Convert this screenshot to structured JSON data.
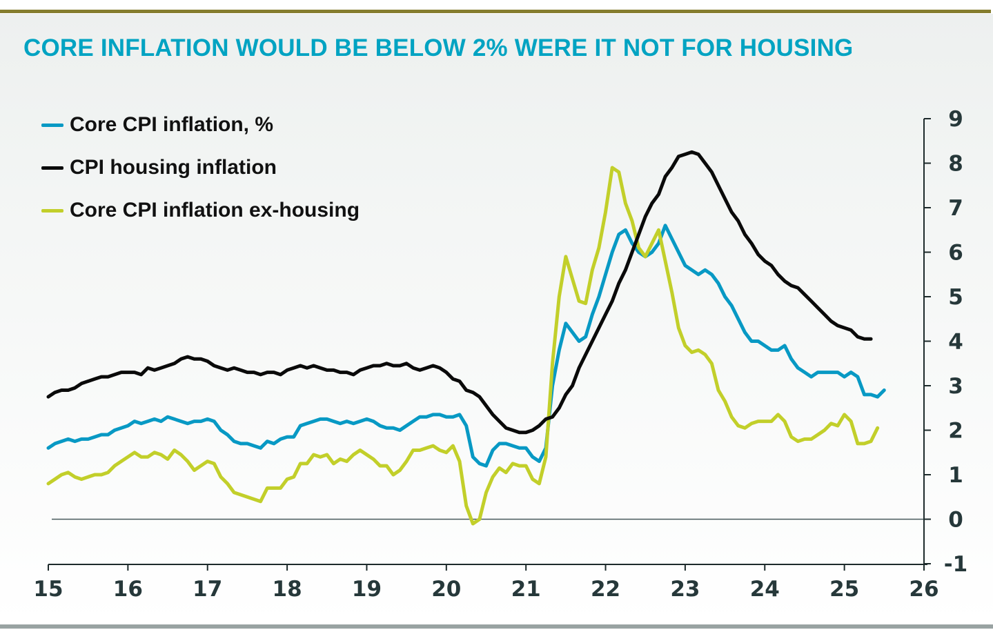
{
  "title": "CORE INFLATION WOULD BE BELOW 2% WERE IT NOT FOR HOUSING",
  "colors": {
    "top_rule": "#857d2e",
    "bottom_rule": "#99a3a2",
    "title": "#00a3c2",
    "axis_text": "#26383a"
  },
  "chart_data": {
    "type": "line",
    "title": "CORE INFLATION WOULD BE BELOW 2% WERE IT NOT FOR HOUSING",
    "xlabel": "",
    "ylabel": "",
    "xlim": [
      15,
      26
    ],
    "ylim": [
      -1,
      9
    ],
    "x_ticks": [
      "15",
      "16",
      "17",
      "18",
      "19",
      "20",
      "21",
      "22",
      "23",
      "24",
      "25",
      "26"
    ],
    "y_ticks": [
      "9",
      "8",
      "7",
      "6",
      "5",
      "4",
      "3",
      "2",
      "1",
      "0",
      "-1"
    ],
    "y_axis_side": "right",
    "zero_line": true,
    "grid": false,
    "legend_position": "top-left",
    "x_start": 2015.0,
    "x_step_months": 1,
    "series": [
      {
        "name": "Core CPI inflation, %",
        "color": "#0899c4",
        "values": [
          1.6,
          1.7,
          1.75,
          1.8,
          1.75,
          1.8,
          1.8,
          1.85,
          1.9,
          1.9,
          2.0,
          2.05,
          2.1,
          2.2,
          2.15,
          2.2,
          2.25,
          2.2,
          2.3,
          2.25,
          2.2,
          2.15,
          2.2,
          2.2,
          2.25,
          2.2,
          2.0,
          1.9,
          1.75,
          1.7,
          1.7,
          1.65,
          1.6,
          1.75,
          1.7,
          1.8,
          1.85,
          1.85,
          2.1,
          2.15,
          2.2,
          2.25,
          2.25,
          2.2,
          2.15,
          2.2,
          2.15,
          2.2,
          2.25,
          2.2,
          2.1,
          2.05,
          2.05,
          2.0,
          2.1,
          2.2,
          2.3,
          2.3,
          2.35,
          2.35,
          2.3,
          2.3,
          2.35,
          2.1,
          1.4,
          1.25,
          1.2,
          1.55,
          1.7,
          1.7,
          1.65,
          1.6,
          1.6,
          1.4,
          1.3,
          1.6,
          3.0,
          3.8,
          4.4,
          4.2,
          4.0,
          4.1,
          4.6,
          5.0,
          5.5,
          6.0,
          6.4,
          6.5,
          6.2,
          6.0,
          5.9,
          6.0,
          6.2,
          6.6,
          6.3,
          6.0,
          5.7,
          5.6,
          5.5,
          5.6,
          5.5,
          5.3,
          5.0,
          4.8,
          4.5,
          4.2,
          4.0,
          4.0,
          3.9,
          3.8,
          3.8,
          3.9,
          3.6,
          3.4,
          3.3,
          3.2,
          3.3,
          3.3,
          3.3,
          3.3,
          3.2,
          3.3,
          3.2,
          2.8,
          2.8,
          2.75,
          2.9
        ]
      },
      {
        "name": "CPI housing inflation",
        "color": "#0a0a0a",
        "values": [
          2.75,
          2.85,
          2.9,
          2.9,
          2.95,
          3.05,
          3.1,
          3.15,
          3.2,
          3.2,
          3.25,
          3.3,
          3.3,
          3.3,
          3.25,
          3.4,
          3.35,
          3.4,
          3.45,
          3.5,
          3.6,
          3.65,
          3.6,
          3.6,
          3.55,
          3.45,
          3.4,
          3.35,
          3.4,
          3.35,
          3.3,
          3.3,
          3.25,
          3.3,
          3.3,
          3.25,
          3.35,
          3.4,
          3.45,
          3.4,
          3.45,
          3.4,
          3.35,
          3.35,
          3.3,
          3.3,
          3.25,
          3.35,
          3.4,
          3.45,
          3.45,
          3.5,
          3.45,
          3.45,
          3.5,
          3.4,
          3.35,
          3.4,
          3.45,
          3.4,
          3.3,
          3.15,
          3.1,
          2.9,
          2.85,
          2.75,
          2.55,
          2.35,
          2.2,
          2.05,
          2.0,
          1.95,
          1.95,
          2.0,
          2.1,
          2.25,
          2.3,
          2.5,
          2.8,
          3.0,
          3.4,
          3.7,
          4.0,
          4.3,
          4.6,
          4.9,
          5.3,
          5.6,
          6.0,
          6.4,
          6.8,
          7.1,
          7.3,
          7.7,
          7.9,
          8.15,
          8.2,
          8.25,
          8.2,
          8.0,
          7.8,
          7.5,
          7.2,
          6.9,
          6.7,
          6.4,
          6.2,
          5.95,
          5.8,
          5.7,
          5.5,
          5.35,
          5.25,
          5.2,
          5.05,
          4.9,
          4.75,
          4.6,
          4.45,
          4.35,
          4.3,
          4.25,
          4.1,
          4.05,
          4.05
        ]
      },
      {
        "name": "Core CPI inflation ex-housing",
        "color": "#c2cf2a",
        "values": [
          0.8,
          0.9,
          1.0,
          1.05,
          0.95,
          0.9,
          0.95,
          1.0,
          1.0,
          1.05,
          1.2,
          1.3,
          1.4,
          1.5,
          1.4,
          1.4,
          1.5,
          1.45,
          1.35,
          1.55,
          1.45,
          1.3,
          1.1,
          1.2,
          1.3,
          1.25,
          0.95,
          0.8,
          0.6,
          0.55,
          0.5,
          0.45,
          0.4,
          0.7,
          0.7,
          0.7,
          0.9,
          0.95,
          1.25,
          1.25,
          1.45,
          1.4,
          1.45,
          1.25,
          1.35,
          1.3,
          1.45,
          1.55,
          1.45,
          1.35,
          1.2,
          1.2,
          1.0,
          1.1,
          1.3,
          1.55,
          1.55,
          1.6,
          1.65,
          1.55,
          1.5,
          1.65,
          1.3,
          0.3,
          -0.1,
          0.0,
          0.6,
          0.95,
          1.15,
          1.05,
          1.25,
          1.2,
          1.2,
          0.9,
          0.8,
          1.4,
          3.5,
          5.0,
          5.9,
          5.4,
          4.9,
          4.85,
          5.6,
          6.1,
          6.9,
          7.9,
          7.8,
          7.1,
          6.7,
          6.1,
          5.9,
          6.2,
          6.5,
          5.8,
          5.1,
          4.3,
          3.9,
          3.75,
          3.8,
          3.7,
          3.5,
          2.9,
          2.65,
          2.3,
          2.1,
          2.05,
          2.15,
          2.2,
          2.2,
          2.2,
          2.35,
          2.2,
          1.85,
          1.75,
          1.8,
          1.8,
          1.9,
          2.0,
          2.15,
          2.1,
          2.35,
          2.2,
          1.7,
          1.7,
          1.75,
          2.05
        ]
      }
    ]
  },
  "legend": [
    {
      "label": "Core CPI inflation, %",
      "color": "#0899c4"
    },
    {
      "label": "CPI housing inflation",
      "color": "#0a0a0a"
    },
    {
      "label": "Core CPI inflation ex-housing",
      "color": "#c2cf2a"
    }
  ]
}
